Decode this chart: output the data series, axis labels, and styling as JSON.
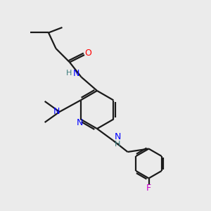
{
  "bg_color": "#ebebeb",
  "bond_color": "#1a1a1a",
  "n_color": "#0000ff",
  "o_color": "#ff0000",
  "f_color": "#cc00cc",
  "h_color": "#3a7a7a",
  "line_width": 1.6,
  "figsize": [
    3.0,
    3.0
  ],
  "dpi": 100,
  "xlim": [
    0,
    10
  ],
  "ylim": [
    0,
    10
  ]
}
